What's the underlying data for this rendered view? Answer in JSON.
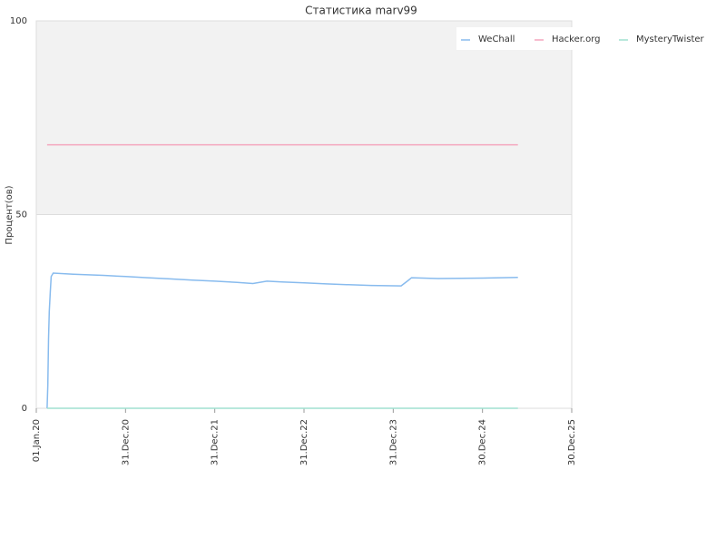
{
  "chart_data": {
    "type": "line",
    "title": "Статистика marv99",
    "y_label": "Процент(ов)",
    "x": [
      "14.Feb.20",
      "17.Feb.20",
      "20.Feb.20",
      "23.Feb.20",
      "27.Feb.20",
      "02.Mar.20",
      "10.Mar.20",
      "01.Jun.20",
      "01.Oct.20",
      "01.Jan.21",
      "01.Apr.21",
      "01.Jul.21",
      "01.Oct.21",
      "01.Jan.22",
      "01.Apr.22",
      "05.Jun.22",
      "01.Aug.22",
      "01.Oct.22",
      "01.Jan.23",
      "01.Apr.23",
      "01.Jul.23",
      "01.Oct.23",
      "01.Feb.24",
      "01.Mar.24",
      "15.Mar.24",
      "01.Jul.24",
      "01.Jan.25",
      "24.May.25"
    ],
    "series": [
      {
        "name": "WeChall",
        "color": "#88bbee",
        "values": [
          0,
          6,
          18,
          25,
          30,
          34,
          34.9,
          34.6,
          34.3,
          34,
          33.7,
          33.4,
          33.1,
          32.8,
          32.5,
          32.2,
          32.8,
          32.6,
          32.4,
          32.1,
          31.9,
          31.7,
          31.6,
          33,
          33.7,
          33.5,
          33.6,
          33.8
        ]
      },
      {
        "name": "Hacker.org",
        "color": "#f4a6be",
        "values": [
          68,
          68,
          68,
          68,
          68,
          68,
          68,
          68,
          68,
          68,
          68,
          68,
          68,
          68,
          68,
          68,
          68,
          68,
          68,
          68,
          68,
          68,
          68,
          68,
          68,
          68,
          68,
          68
        ]
      },
      {
        "name": "MysteryTwister",
        "color": "#a0e0d0",
        "values": [
          0,
          0,
          0,
          0,
          0,
          0,
          0,
          0,
          0,
          0,
          0,
          0,
          0,
          0,
          0,
          0,
          0,
          0,
          0,
          0,
          0,
          0,
          0,
          0,
          0,
          0,
          0,
          0
        ]
      }
    ],
    "xlim": [
      "01.Jan.20",
      "30.Dec.25"
    ],
    "xticks": [
      "01.Jan.20",
      "31.Dec.20",
      "31.Dec.21",
      "31.Dec.22",
      "31.Dec.23",
      "30.Dec.24",
      "30.Dec.25"
    ],
    "ylim": [
      0,
      100
    ],
    "yticks": [
      0,
      50,
      100
    ],
    "grid": true,
    "legend": "top-right"
  }
}
